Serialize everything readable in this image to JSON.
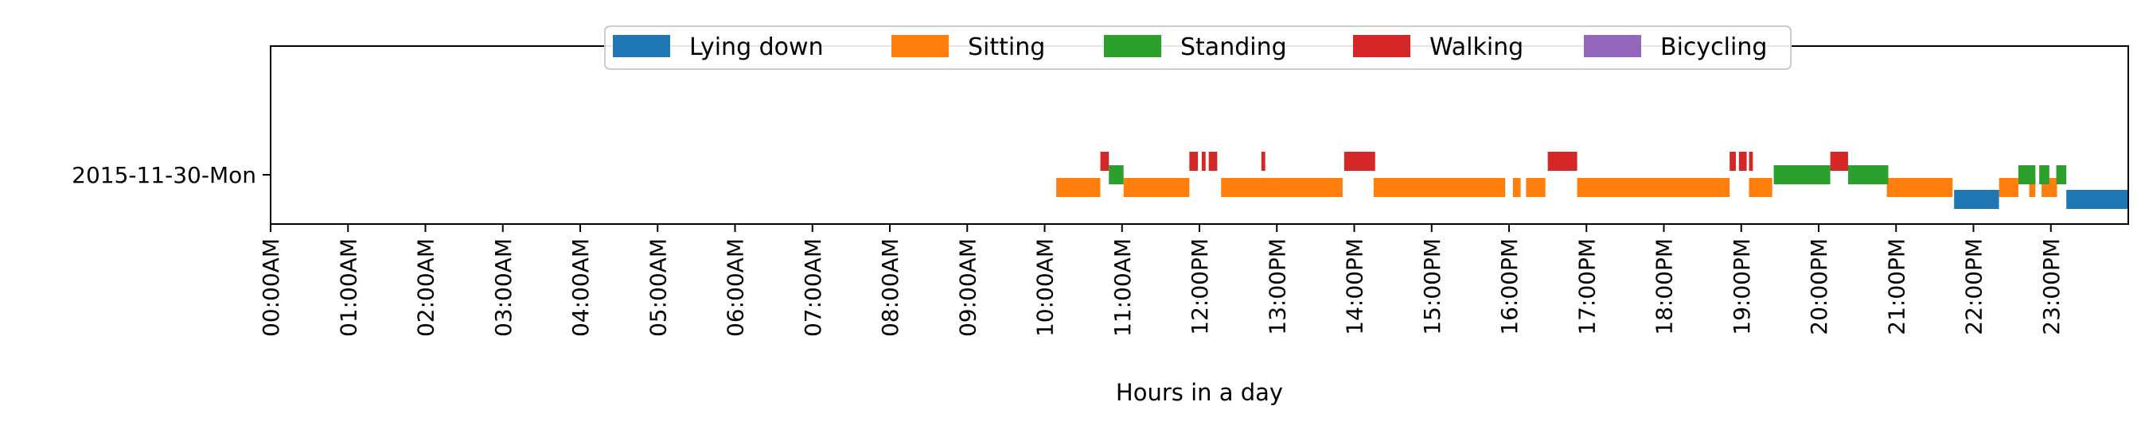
{
  "chart_data": {
    "type": "timeline",
    "xlabel": "Hours in a day",
    "xlim": [
      0,
      24
    ],
    "x_ticks": [
      "00:00AM",
      "01:00AM",
      "02:00AM",
      "03:00AM",
      "04:00AM",
      "05:00AM",
      "06:00AM",
      "07:00AM",
      "08:00AM",
      "09:00AM",
      "10:00AM",
      "11:00AM",
      "12:00PM",
      "13:00PM",
      "14:00PM",
      "15:00PM",
      "16:00PM",
      "17:00PM",
      "18:00PM",
      "19:00PM",
      "20:00PM",
      "21:00PM",
      "22:00PM",
      "23:00PM"
    ],
    "rows": [
      "2015-11-30-Mon"
    ],
    "legend": {
      "placement": "top-center"
    },
    "series": [
      {
        "name": "Lying down",
        "color": "#1f77b4",
        "segments": [
          [
            21.75,
            22.33
          ],
          [
            23.2,
            24.0
          ]
        ]
      },
      {
        "name": "Sitting",
        "color": "#ff7f0e",
        "segments": [
          [
            10.15,
            10.72
          ],
          [
            11.02,
            11.87
          ],
          [
            12.28,
            13.85
          ],
          [
            14.25,
            15.95
          ],
          [
            16.05,
            16.15
          ],
          [
            16.22,
            16.47
          ],
          [
            16.88,
            18.85
          ],
          [
            19.1,
            19.4
          ],
          [
            20.88,
            21.73
          ],
          [
            22.33,
            22.58
          ],
          [
            22.72,
            22.8
          ],
          [
            22.88,
            23.08
          ]
        ]
      },
      {
        "name": "Standing",
        "color": "#2ca02c",
        "segments": [
          [
            10.83,
            11.02
          ],
          [
            19.42,
            20.15
          ],
          [
            20.38,
            20.9
          ],
          [
            22.58,
            22.8
          ],
          [
            22.85,
            22.98
          ],
          [
            23.07,
            23.2
          ]
        ]
      },
      {
        "name": "Walking",
        "color": "#d62728",
        "segments": [
          [
            10.72,
            10.83
          ],
          [
            11.87,
            11.98
          ],
          [
            12.03,
            12.08
          ],
          [
            12.12,
            12.23
          ],
          [
            12.8,
            12.85
          ],
          [
            13.87,
            14.27
          ],
          [
            16.5,
            16.88
          ],
          [
            18.85,
            18.93
          ],
          [
            18.97,
            19.07
          ],
          [
            19.1,
            19.15
          ],
          [
            20.15,
            20.38
          ]
        ]
      },
      {
        "name": "Bicycling",
        "color": "#9467bd",
        "segments": []
      }
    ]
  }
}
